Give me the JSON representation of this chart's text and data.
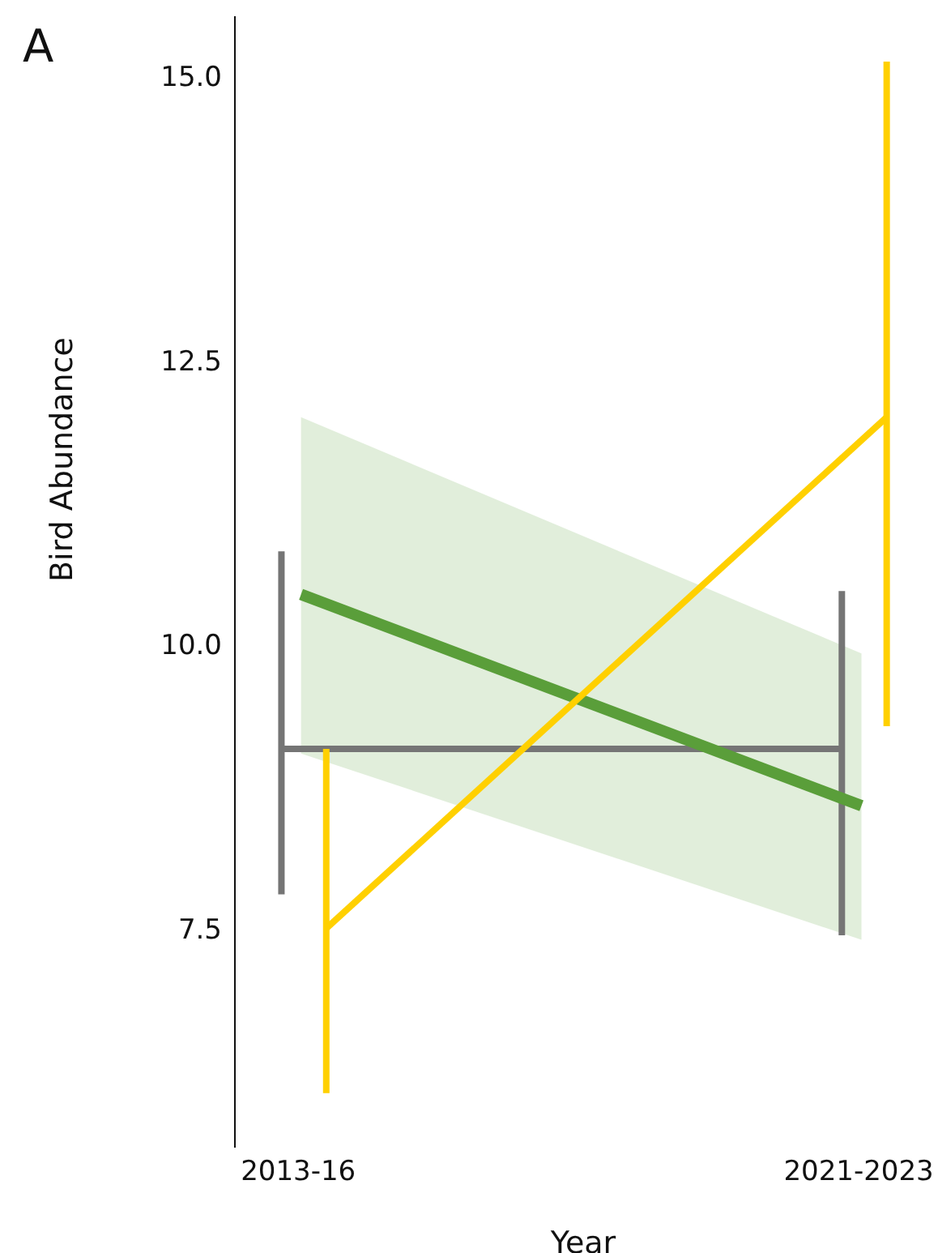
{
  "chart_data": {
    "type": "line",
    "xlabel": "Year",
    "ylabel": "Bird Abundance",
    "annotations": [
      "A"
    ],
    "categories": [
      "2013-16",
      "2021-2023"
    ],
    "ylim": [
      5.57,
      15.53
    ],
    "yticks": [
      {
        "value": 7.5,
        "label": "7.5"
      },
      {
        "value": 10,
        "label": "10.0"
      },
      {
        "value": 12.5,
        "label": "12.5"
      },
      {
        "value": 15,
        "label": "15.0"
      }
    ],
    "grid": false,
    "legend": false,
    "marker": "none",
    "series": [
      {
        "color": "#757575",
        "values": [
          9.08,
          9.08
        ],
        "errors": [
          [
            7.8,
            10.82
          ],
          [
            7.44,
            10.47
          ]
        ]
      },
      {
        "color": "#5a9e3a",
        "values": [
          10.44,
          8.58
        ],
        "lower": [
          9.04,
          7.4
        ],
        "upper": [
          12.0,
          9.92
        ]
      },
      {
        "color": "#ffd000",
        "values": [
          7.5,
          12.0
        ],
        "errors": [
          [
            6.05,
            9.08
          ],
          [
            9.28,
            15.13
          ]
        ]
      }
    ]
  }
}
